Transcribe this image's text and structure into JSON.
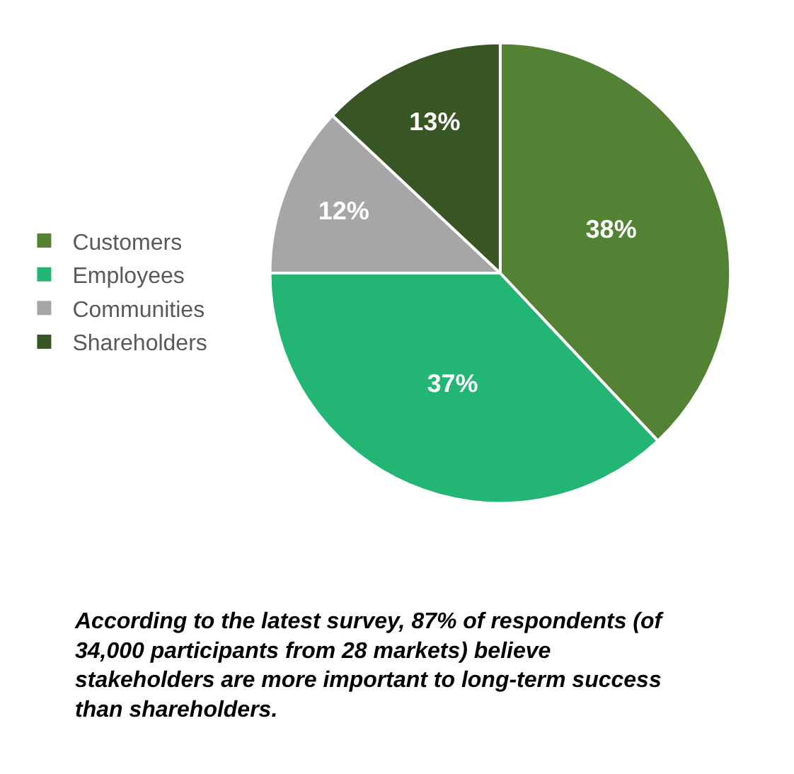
{
  "chart_data": {
    "type": "pie",
    "categories": [
      "Customers",
      "Employees",
      "Communities",
      "Shareholders"
    ],
    "values": [
      38,
      37,
      12,
      13
    ],
    "value_labels": [
      "38%",
      "37%",
      "12%",
      "13%"
    ],
    "colors": [
      "#548235",
      "#23b573",
      "#a6a6a6",
      "#375623"
    ],
    "legend": "left",
    "annotations": [
      "According to the latest survey, 87% of respondents (of 34,000 participants from 28 markets) believe stakeholders are more important to long-term success than shareholders."
    ]
  }
}
